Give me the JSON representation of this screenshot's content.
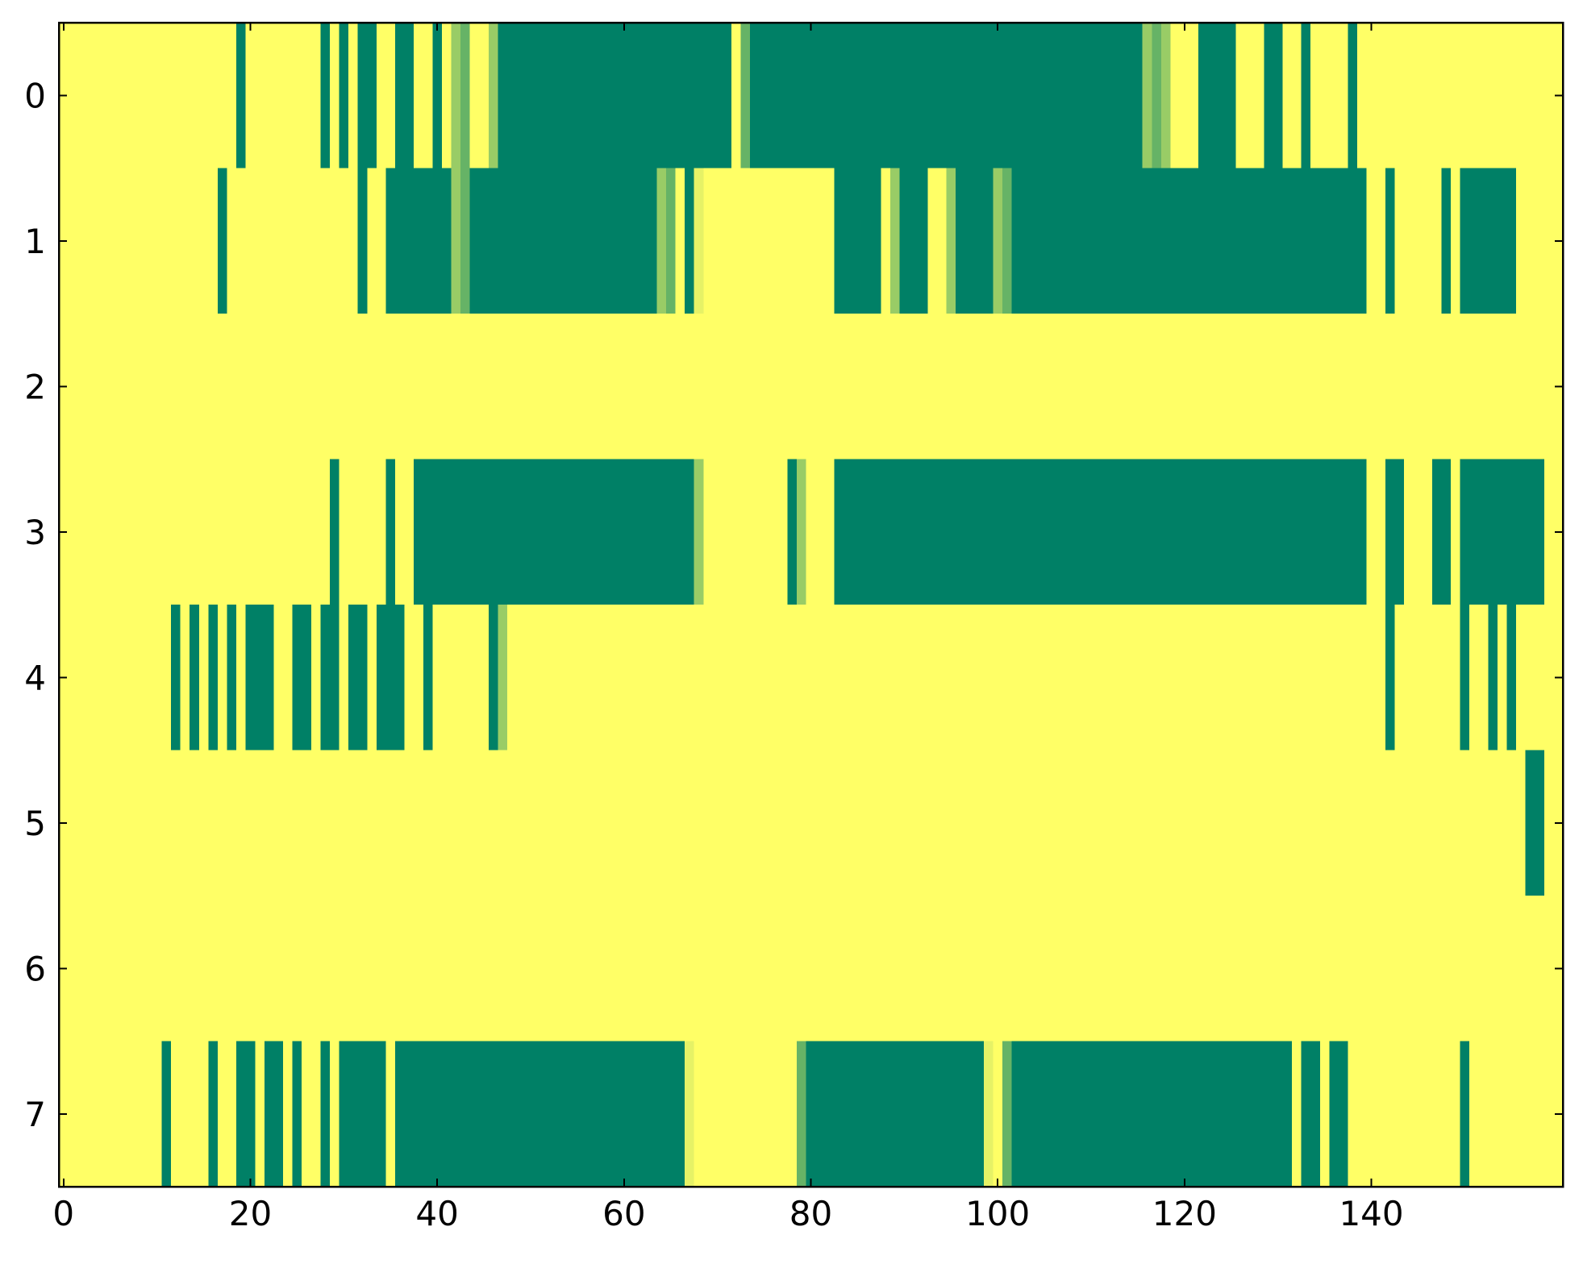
{
  "chart_data": {
    "type": "heatmap",
    "xlim": [
      -0.5,
      160.5
    ],
    "ylim": [
      7.5,
      -0.5
    ],
    "xticks": [
      0,
      20,
      40,
      60,
      80,
      100,
      120,
      140
    ],
    "yticks": [
      0,
      1,
      2,
      3,
      4,
      5,
      6,
      7
    ],
    "colormap": [
      "#008066",
      "#ffff66"
    ],
    "clim": [
      0,
      1
    ],
    "values": [
      [
        1,
        1,
        1,
        1,
        1,
        1,
        1,
        1,
        1,
        1,
        1,
        1,
        1,
        1,
        1,
        1,
        1,
        1,
        1,
        0,
        1,
        1,
        1,
        1,
        1,
        1,
        1,
        1,
        0,
        1,
        0,
        1,
        0,
        0,
        1,
        1,
        0,
        0,
        1,
        1,
        0,
        1,
        0.6,
        0.4,
        1,
        1,
        0.6,
        0,
        0,
        0,
        0,
        0,
        0,
        0,
        0,
        0,
        0,
        0,
        0,
        0,
        0,
        0,
        0,
        0,
        0,
        0,
        0,
        0,
        0,
        0,
        0,
        0,
        1,
        0.4,
        0,
        0,
        0,
        0,
        0,
        0,
        0,
        0,
        0,
        0,
        0,
        0,
        0,
        0,
        0,
        0,
        0,
        0,
        0,
        0,
        0,
        0,
        0,
        0,
        0,
        0,
        0,
        0,
        0,
        0,
        0,
        0,
        0,
        0,
        0,
        0,
        0,
        0,
        0,
        0,
        0,
        0,
        0.6,
        0.4,
        0.6,
        1,
        1,
        1,
        0,
        0,
        0,
        0,
        1,
        1,
        1,
        0,
        0,
        1,
        1,
        0,
        1,
        1,
        1,
        1,
        0,
        1,
        1,
        1,
        1,
        1,
        1,
        1,
        1,
        1,
        1,
        1,
        1,
        1,
        1,
        1,
        1,
        1,
        1,
        1,
        1,
        1,
        1
      ],
      [
        1,
        1,
        1,
        1,
        1,
        1,
        1,
        1,
        1,
        1,
        1,
        1,
        1,
        1,
        1,
        1,
        1,
        0,
        1,
        1,
        1,
        1,
        1,
        1,
        1,
        1,
        1,
        1,
        1,
        1,
        1,
        1,
        0,
        1,
        1,
        0,
        0,
        0,
        0,
        0,
        0,
        0,
        0.6,
        0.4,
        0,
        0,
        0,
        0,
        0,
        0,
        0,
        0,
        0,
        0,
        0,
        0,
        0,
        0,
        0,
        0,
        0,
        0,
        0,
        0,
        0.6,
        0.4,
        1,
        0,
        0.9,
        1,
        1,
        1,
        1,
        1,
        1,
        1,
        1,
        1,
        1,
        1,
        1,
        1,
        1,
        0,
        0,
        0,
        0,
        0,
        1,
        0.6,
        0,
        0,
        0,
        1,
        1,
        0.6,
        0,
        0,
        0,
        0,
        0.6,
        0.4,
        0,
        0,
        0,
        0,
        0,
        0,
        0,
        0,
        0,
        0,
        0,
        0,
        0,
        0,
        0,
        0,
        0,
        0,
        0,
        0,
        0,
        0,
        0,
        0,
        0,
        0,
        0,
        0,
        0,
        0,
        0,
        0,
        0,
        0,
        0,
        0,
        0,
        0,
        1,
        1,
        0,
        1,
        1,
        1,
        1,
        1,
        0,
        1,
        0,
        0,
        0,
        0,
        0,
        0,
        1,
        1,
        1,
        1,
        1
      ],
      [
        1,
        1,
        1,
        1,
        1,
        1,
        1,
        1,
        1,
        1,
        1,
        1,
        1,
        1,
        1,
        1,
        1,
        1,
        1,
        1,
        1,
        1,
        1,
        1,
        1,
        1,
        1,
        1,
        1,
        1,
        1,
        1,
        1,
        1,
        1,
        1,
        1,
        1,
        1,
        1,
        1,
        1,
        1,
        1,
        1,
        1,
        1,
        1,
        1,
        1,
        1,
        1,
        1,
        1,
        1,
        1,
        1,
        1,
        1,
        1,
        1,
        1,
        1,
        1,
        1,
        1,
        1,
        1,
        1,
        1,
        1,
        1,
        1,
        1,
        1,
        1,
        1,
        1,
        1,
        1,
        1,
        1,
        1,
        1,
        1,
        1,
        1,
        1,
        1,
        1,
        1,
        1,
        1,
        1,
        1,
        1,
        1,
        1,
        1,
        1,
        1,
        1,
        1,
        1,
        1,
        1,
        1,
        1,
        1,
        1,
        1,
        1,
        1,
        1,
        1,
        1,
        1,
        1,
        1,
        1,
        1,
        1,
        1,
        1,
        1,
        1,
        1,
        1,
        1,
        1,
        1,
        1,
        1,
        1,
        1,
        1,
        1,
        1,
        1,
        1,
        1,
        1,
        1,
        1,
        1,
        1,
        1,
        1,
        1,
        1,
        1,
        1,
        1,
        1,
        1,
        1,
        1,
        1,
        1,
        1,
        1
      ],
      [
        1,
        1,
        1,
        1,
        1,
        1,
        1,
        1,
        1,
        1,
        1,
        1,
        1,
        1,
        1,
        1,
        1,
        1,
        1,
        1,
        1,
        1,
        1,
        1,
        1,
        1,
        1,
        1,
        1,
        0,
        1,
        1,
        1,
        1,
        1,
        0,
        1,
        1,
        0,
        0,
        0,
        0,
        0,
        0,
        0,
        0,
        0,
        0,
        0,
        0,
        0,
        0,
        0,
        0,
        0,
        0,
        0,
        0,
        0,
        0,
        0,
        0,
        0,
        0,
        0,
        0,
        0,
        0,
        0.6,
        1,
        1,
        1,
        1,
        1,
        1,
        1,
        1,
        1,
        0,
        0.6,
        1,
        1,
        1,
        0,
        0,
        0,
        0,
        0,
        0,
        0,
        0,
        0,
        0,
        0,
        0,
        0,
        0,
        0,
        0,
        0,
        0,
        0,
        0,
        0,
        0,
        0,
        0,
        0,
        0,
        0,
        0,
        0,
        0,
        0,
        0,
        0,
        0,
        0,
        0,
        0,
        0,
        0,
        0,
        0,
        0,
        0,
        0,
        0,
        0,
        0,
        0,
        0,
        0,
        0,
        0,
        0,
        0,
        0,
        0,
        0,
        1,
        1,
        0,
        0,
        1,
        1,
        1,
        0,
        0,
        1,
        0,
        0,
        0,
        0,
        0,
        0,
        0,
        0,
        0,
        1,
        1
      ],
      [
        1,
        1,
        1,
        1,
        1,
        1,
        1,
        1,
        1,
        1,
        1,
        1,
        0,
        1,
        0,
        1,
        0,
        1,
        0,
        1,
        0,
        0,
        0,
        1,
        1,
        0,
        0,
        1,
        0,
        0,
        1,
        0,
        0,
        1,
        0,
        0,
        0,
        1,
        1,
        0,
        1,
        1,
        1,
        1,
        1,
        1,
        0,
        0.6,
        1,
        1,
        1,
        1,
        1,
        1,
        1,
        1,
        1,
        1,
        1,
        1,
        1,
        1,
        1,
        1,
        1,
        1,
        1,
        1,
        1,
        1,
        1,
        1,
        1,
        1,
        1,
        1,
        1,
        1,
        1,
        1,
        1,
        1,
        1,
        1,
        1,
        1,
        1,
        1,
        1,
        1,
        1,
        1,
        1,
        1,
        1,
        1,
        1,
        1,
        1,
        1,
        1,
        1,
        1,
        1,
        1,
        1,
        1,
        1,
        1,
        1,
        1,
        1,
        1,
        1,
        1,
        1,
        1,
        1,
        1,
        1,
        1,
        1,
        1,
        1,
        1,
        1,
        1,
        1,
        1,
        1,
        1,
        1,
        1,
        1,
        1,
        1,
        1,
        1,
        1,
        1,
        1,
        1,
        0,
        1,
        1,
        1,
        1,
        1,
        1,
        1,
        0,
        1,
        1,
        0,
        1,
        0,
        1,
        1,
        1,
        1,
        1
      ],
      [
        1,
        1,
        1,
        1,
        1,
        1,
        1,
        1,
        1,
        1,
        1,
        1,
        1,
        1,
        1,
        1,
        1,
        1,
        1,
        1,
        1,
        1,
        1,
        1,
        1,
        1,
        1,
        1,
        1,
        1,
        1,
        1,
        1,
        1,
        1,
        1,
        1,
        1,
        1,
        1,
        1,
        1,
        1,
        1,
        1,
        1,
        1,
        1,
        1,
        1,
        1,
        1,
        1,
        1,
        1,
        1,
        1,
        1,
        1,
        1,
        1,
        1,
        1,
        1,
        1,
        1,
        1,
        1,
        1,
        1,
        1,
        1,
        1,
        1,
        1,
        1,
        1,
        1,
        1,
        1,
        1,
        1,
        1,
        1,
        1,
        1,
        1,
        1,
        1,
        1,
        1,
        1,
        1,
        1,
        1,
        1,
        1,
        1,
        1,
        1,
        1,
        1,
        1,
        1,
        1,
        1,
        1,
        1,
        1,
        1,
        1,
        1,
        1,
        1,
        1,
        1,
        1,
        1,
        1,
        1,
        1,
        1,
        1,
        1,
        1,
        1,
        1,
        1,
        1,
        1,
        1,
        1,
        1,
        1,
        1,
        1,
        1,
        1,
        1,
        1,
        1,
        1,
        1,
        1,
        1,
        1,
        1,
        1,
        1,
        1,
        1,
        1,
        1,
        1,
        1,
        1,
        1,
        0,
        0,
        1,
        1
      ],
      [
        1,
        1,
        1,
        1,
        1,
        1,
        1,
        1,
        1,
        1,
        1,
        1,
        1,
        1,
        1,
        1,
        1,
        1,
        1,
        1,
        1,
        1,
        1,
        1,
        1,
        1,
        1,
        1,
        1,
        1,
        1,
        1,
        1,
        1,
        1,
        1,
        1,
        1,
        1,
        1,
        1,
        1,
        1,
        1,
        1,
        1,
        1,
        1,
        1,
        1,
        1,
        1,
        1,
        1,
        1,
        1,
        1,
        1,
        1,
        1,
        1,
        1,
        1,
        1,
        1,
        1,
        1,
        1,
        1,
        1,
        1,
        1,
        1,
        1,
        1,
        1,
        1,
        1,
        1,
        1,
        1,
        1,
        1,
        1,
        1,
        1,
        1,
        1,
        1,
        1,
        1,
        1,
        1,
        1,
        1,
        1,
        1,
        1,
        1,
        1,
        1,
        1,
        1,
        1,
        1,
        1,
        1,
        1,
        1,
        1,
        1,
        1,
        1,
        1,
        1,
        1,
        1,
        1,
        1,
        1,
        1,
        1,
        1,
        1,
        1,
        1,
        1,
        1,
        1,
        1,
        1,
        1,
        1,
        1,
        1,
        1,
        1,
        1,
        1,
        1,
        1,
        1,
        1,
        1,
        1,
        1,
        1,
        1,
        1,
        1,
        1,
        1,
        1,
        1,
        1,
        1,
        1,
        1,
        1,
        1,
        1
      ],
      [
        1,
        1,
        1,
        1,
        1,
        1,
        1,
        1,
        1,
        1,
        1,
        0,
        1,
        1,
        1,
        1,
        0,
        1,
        1,
        0,
        0,
        1,
        0,
        0,
        1,
        0,
        1,
        1,
        0,
        1,
        0,
        0,
        0,
        0,
        0,
        1,
        0,
        0,
        0,
        0,
        0,
        0,
        0,
        0,
        0,
        0,
        0,
        0,
        0,
        0,
        0,
        0,
        0,
        0,
        0,
        0,
        0,
        0,
        0,
        0,
        0,
        0,
        0,
        0,
        0,
        0,
        0,
        0.9,
        1,
        1,
        1,
        1,
        1,
        1,
        1,
        1,
        1,
        1,
        1,
        0.4,
        0,
        0,
        0,
        0,
        0,
        0,
        0,
        0,
        0,
        0,
        0,
        0,
        0,
        0,
        0,
        0,
        0,
        0,
        0,
        0.9,
        1,
        0.4,
        0,
        0,
        0,
        0,
        0,
        0,
        0,
        0,
        0,
        0,
        0,
        0,
        0,
        0,
        0,
        0,
        0,
        0,
        0,
        0,
        0,
        0,
        0,
        0,
        0,
        0,
        0,
        0,
        0,
        0,
        1,
        0,
        0,
        1,
        0,
        0,
        1,
        1,
        1,
        1,
        1,
        1,
        1,
        1,
        1,
        1,
        1,
        1,
        0,
        1,
        1,
        1,
        1,
        1,
        1,
        1,
        1,
        1,
        1
      ]
    ]
  }
}
